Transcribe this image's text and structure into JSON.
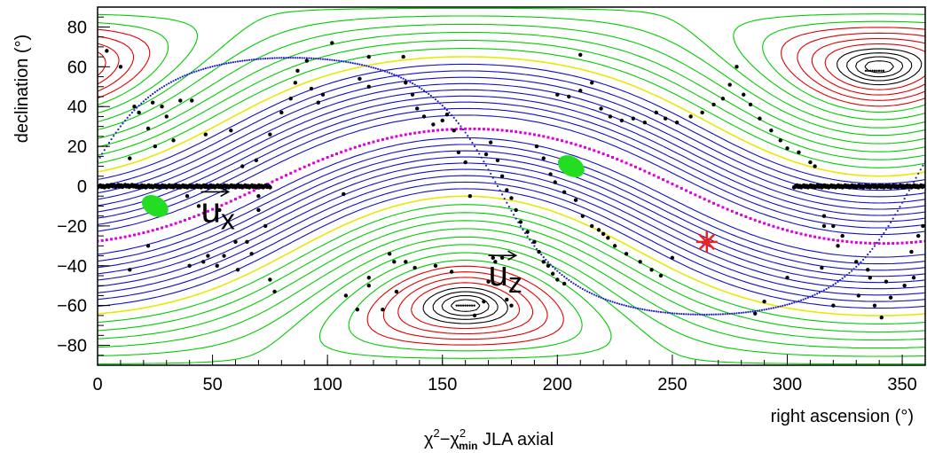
{
  "chart_data": {
    "type": "contour",
    "title": "χ²−χ²min JLA axial",
    "title_main": "χ",
    "title_sup1": "2",
    "title_minus": "−χ",
    "title_sup2": "2",
    "title_sub": "min",
    "title_rest": " JLA axial",
    "xlabel": "right ascension (°)",
    "ylabel": "declination (°)",
    "xlim": [
      0,
      360
    ],
    "ylim": [
      -90,
      90
    ],
    "x_ticks": [
      0,
      50,
      100,
      150,
      200,
      250,
      300,
      350
    ],
    "y_ticks": [
      -80,
      -60,
      -40,
      -20,
      0,
      20,
      40,
      60,
      80
    ],
    "x_tick_labels": [
      "0",
      "50",
      "100",
      "150",
      "200",
      "250",
      "300",
      "350"
    ],
    "y_tick_labels": [
      "−80",
      "−60",
      "−40",
      "−20",
      "0",
      "20",
      "40",
      "60",
      "80"
    ],
    "grid": false,
    "contour_colors": {
      "outer": "#1010c8",
      "level2": "#e8e800",
      "level3": "#00cc00",
      "level4": "#e00000",
      "inner": "#000000"
    },
    "marker_colors": {
      "data_points": "#000000",
      "best_fit": "#22dd22",
      "reference": "#ee2222",
      "galactic_plane": "#dd00dd",
      "ecliptic": "#2222cc"
    },
    "maxima": [
      {
        "ra": 160,
        "dec": -60
      },
      {
        "ra": 338,
        "dec": 58
      }
    ],
    "minima": [
      {
        "ra": 25,
        "dec": -10
      },
      {
        "ra": 205,
        "dec": 10
      }
    ],
    "best_fit_regions": [
      {
        "ra": 25,
        "dec": -10
      },
      {
        "ra": 206,
        "dec": 10
      }
    ],
    "reference_marker": {
      "ra": 265,
      "dec": -28
    },
    "vectors": [
      {
        "label": "u",
        "sub": "x",
        "ra": 45,
        "dec": -18
      },
      {
        "label": "u",
        "sub": "z",
        "ra": 170,
        "dec": -50
      }
    ],
    "data_points": [
      [
        4,
        68
      ],
      [
        10,
        60
      ],
      [
        16,
        40
      ],
      [
        18,
        37
      ],
      [
        24,
        42
      ],
      [
        28,
        40
      ],
      [
        30,
        35
      ],
      [
        36,
        43
      ],
      [
        41,
        43
      ],
      [
        39,
        -5
      ],
      [
        44,
        -10
      ],
      [
        40,
        -40
      ],
      [
        46,
        -38
      ],
      [
        48,
        -35
      ],
      [
        52,
        -40
      ],
      [
        22,
        -30
      ],
      [
        14,
        -42
      ],
      [
        55,
        -35
      ],
      [
        60,
        -28
      ],
      [
        61,
        -42
      ],
      [
        65,
        -28
      ],
      [
        67,
        -34
      ],
      [
        70,
        -12
      ],
      [
        73,
        -20
      ],
      [
        53,
        -12
      ],
      [
        70,
        -5
      ],
      [
        25,
        20
      ],
      [
        33,
        23
      ],
      [
        47,
        26
      ],
      [
        58,
        28
      ],
      [
        63,
        10
      ],
      [
        69,
        13
      ],
      [
        75,
        -47
      ],
      [
        77,
        -53
      ],
      [
        14,
        14
      ],
      [
        22,
        29
      ],
      [
        75,
        26
      ],
      [
        80,
        37
      ],
      [
        84,
        44
      ],
      [
        86,
        52
      ],
      [
        87,
        58
      ],
      [
        91,
        63
      ],
      [
        93,
        49
      ],
      [
        96,
        42
      ],
      [
        98,
        46
      ],
      [
        102,
        72
      ],
      [
        114,
        54
      ],
      [
        118,
        65
      ],
      [
        118,
        50
      ],
      [
        107,
        -4
      ],
      [
        108,
        -55
      ],
      [
        113,
        -62
      ],
      [
        118,
        -46
      ],
      [
        118,
        -50
      ],
      [
        124,
        -62
      ],
      [
        127,
        -34
      ],
      [
        129,
        -38
      ],
      [
        130,
        -53
      ],
      [
        134,
        -38
      ],
      [
        138,
        -41
      ],
      [
        147,
        -40
      ],
      [
        154,
        -43
      ],
      [
        164,
        -65
      ],
      [
        168,
        -58
      ],
      [
        170,
        -48
      ],
      [
        172,
        -36
      ],
      [
        173,
        -38
      ],
      [
        176,
        -36
      ],
      [
        178,
        -57
      ],
      [
        180,
        -60
      ],
      [
        133,
        65
      ],
      [
        134,
        52
      ],
      [
        137,
        46
      ],
      [
        139,
        39
      ],
      [
        142,
        35
      ],
      [
        146,
        31
      ],
      [
        150,
        33
      ],
      [
        152,
        36
      ],
      [
        155,
        28
      ],
      [
        157,
        17
      ],
      [
        160,
        12
      ],
      [
        162,
        -5
      ],
      [
        169,
        16
      ],
      [
        171,
        22
      ],
      [
        174,
        13
      ],
      [
        176,
        5
      ],
      [
        178,
        -2
      ],
      [
        180,
        -6
      ],
      [
        182,
        -12
      ],
      [
        184,
        -18
      ],
      [
        187,
        -23
      ],
      [
        190,
        -28
      ],
      [
        192,
        -33
      ],
      [
        194,
        -38
      ],
      [
        196,
        -40
      ],
      [
        198,
        -44
      ],
      [
        200,
        -47
      ],
      [
        203,
        -49
      ],
      [
        191,
        20
      ],
      [
        194,
        14
      ],
      [
        197,
        6
      ],
      [
        199,
        2
      ],
      [
        203,
        -3
      ],
      [
        208,
        -7
      ],
      [
        211,
        -15
      ],
      [
        215,
        -20
      ],
      [
        218,
        -22
      ],
      [
        220,
        -24
      ],
      [
        222,
        -26
      ],
      [
        225,
        -30
      ],
      [
        230,
        -34
      ],
      [
        236,
        -38
      ],
      [
        241,
        -42
      ],
      [
        245,
        -45
      ],
      [
        250,
        -36
      ],
      [
        200,
        46
      ],
      [
        205,
        45
      ],
      [
        210,
        48
      ],
      [
        210,
        66
      ],
      [
        215,
        52
      ],
      [
        219,
        39
      ],
      [
        223,
        35
      ],
      [
        228,
        33
      ],
      [
        233,
        34
      ],
      [
        238,
        32
      ],
      [
        243,
        37
      ],
      [
        247,
        34
      ],
      [
        252,
        32
      ],
      [
        258,
        35
      ],
      [
        263,
        37
      ],
      [
        268,
        41
      ],
      [
        272,
        44
      ],
      [
        275,
        51
      ],
      [
        278,
        60
      ],
      [
        281,
        46
      ],
      [
        284,
        41
      ],
      [
        288,
        34
      ],
      [
        293,
        28
      ],
      [
        297,
        23
      ],
      [
        300,
        19
      ],
      [
        305,
        17
      ],
      [
        310,
        12
      ],
      [
        312,
        10
      ],
      [
        316,
        -15
      ],
      [
        320,
        -20
      ],
      [
        324,
        -25
      ],
      [
        330,
        -38
      ],
      [
        335,
        -42
      ],
      [
        336,
        -46
      ],
      [
        338,
        -60
      ],
      [
        341,
        -66
      ],
      [
        345,
        -56
      ],
      [
        354,
        -33
      ],
      [
        357,
        -25
      ],
      [
        359,
        -20
      ],
      [
        286,
        -64
      ],
      [
        290,
        -58
      ],
      [
        300,
        -46
      ],
      [
        315,
        -41
      ],
      [
        322,
        -30
      ],
      [
        316,
        -20
      ],
      [
        320,
        -60
      ],
      [
        331,
        -55
      ],
      [
        343,
        -48
      ],
      [
        351,
        -50
      ],
      [
        355,
        -46
      ]
    ],
    "equator_band": {
      "dec": 0,
      "ra_ranges": [
        [
          0,
          75
        ],
        [
          303,
          360
        ]
      ]
    }
  }
}
